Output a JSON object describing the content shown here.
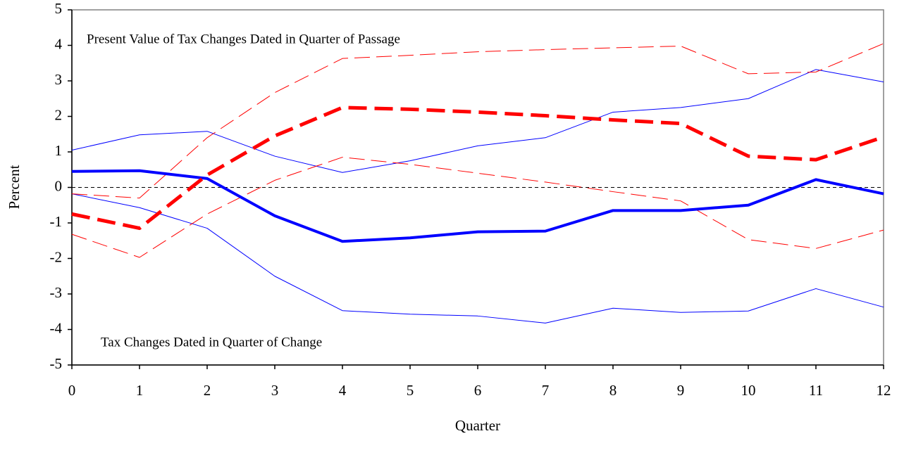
{
  "chart_data": {
    "type": "line",
    "x_label": "Quarter",
    "y_label": "Percent",
    "annotations": [
      "Present Value of Tax Changes Dated in Quarter of Passage",
      "Tax Changes Dated in Quarter of Change"
    ],
    "x": [
      0,
      1,
      2,
      3,
      4,
      5,
      6,
      7,
      8,
      9,
      10,
      11,
      12
    ],
    "xlim": [
      0,
      12
    ],
    "xticks": [
      0,
      1,
      2,
      3,
      4,
      5,
      6,
      7,
      8,
      9,
      10,
      11,
      12
    ],
    "ylim": [
      -5,
      5
    ],
    "yticks": [
      -5,
      -4,
      -3,
      -2,
      -1,
      0,
      1,
      2,
      3,
      4,
      5
    ],
    "zero_line": true,
    "series": [
      {
        "color": "#0000ff",
        "width": 1,
        "dash": "none",
        "values": [
          1.05,
          1.48,
          1.58,
          0.88,
          0.42,
          0.75,
          1.17,
          1.4,
          2.12,
          2.25,
          2.5,
          3.32,
          2.97
        ]
      },
      {
        "color": "#0000ff",
        "width": 1,
        "dash": "none",
        "values": [
          -0.18,
          -0.57,
          -1.15,
          -2.5,
          -3.47,
          -3.57,
          -3.62,
          -3.82,
          -3.4,
          -3.52,
          -3.48,
          -2.85,
          -3.37
        ]
      },
      {
        "color": "#ff0000",
        "width": 1,
        "dash": "22 9",
        "values": [
          -0.18,
          -0.3,
          1.4,
          2.67,
          3.63,
          3.72,
          3.82,
          3.88,
          3.93,
          3.98,
          3.2,
          3.25,
          4.05
        ]
      },
      {
        "color": "#ff0000",
        "width": 1,
        "dash": "22 9",
        "values": [
          -1.32,
          -1.97,
          -0.75,
          0.2,
          0.85,
          0.65,
          0.4,
          0.15,
          -0.12,
          -0.38,
          -1.47,
          -1.72,
          -1.2
        ]
      },
      {
        "color": "#0000ff",
        "width": 4,
        "dash": "none",
        "values": [
          0.45,
          0.47,
          0.25,
          -0.8,
          -1.52,
          -1.42,
          -1.25,
          -1.23,
          -0.65,
          -0.65,
          -0.5,
          0.22,
          -0.18
        ]
      },
      {
        "color": "#ff0000",
        "width": 5,
        "dash": "26 11",
        "values": [
          -0.75,
          -1.15,
          0.35,
          1.45,
          2.25,
          2.2,
          2.12,
          2.02,
          1.9,
          1.8,
          0.88,
          0.78,
          1.42
        ]
      }
    ]
  }
}
